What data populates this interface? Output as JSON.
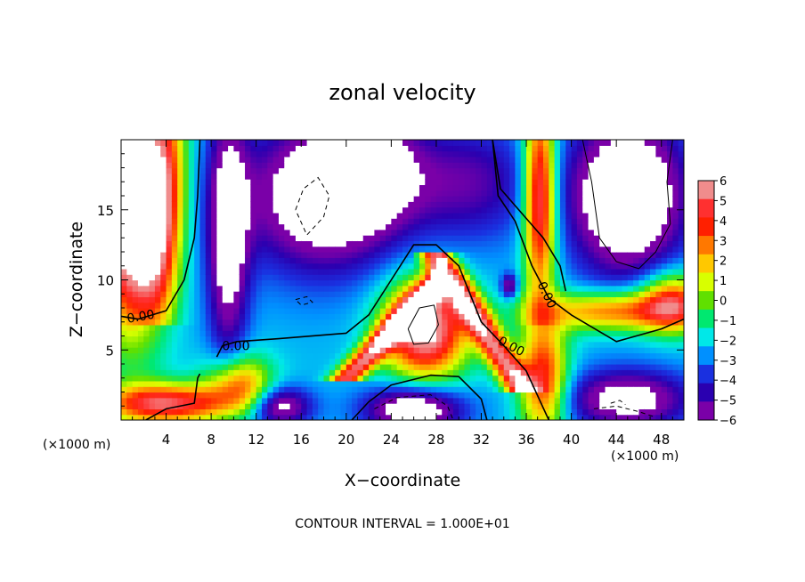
{
  "chart_data": {
    "type": "heatmap",
    "title": "zonal velocity",
    "xlabel": "X−coordinate",
    "ylabel": "Z−coordinate",
    "x_unit_left": "(×1000 m)",
    "x_unit_right": "(×1000 m)",
    "footer": "CONTOUR INTERVAL = 1.000E+01",
    "xlim": [
      0,
      50
    ],
    "ylim": [
      0,
      20
    ],
    "x_ticks": [
      4,
      8,
      12,
      16,
      20,
      24,
      28,
      32,
      36,
      40,
      44,
      48
    ],
    "x_tick_labels": [
      "4",
      "8",
      "12",
      "16",
      "20",
      "24",
      "28",
      "32",
      "36",
      "40",
      "44",
      "48"
    ],
    "y_ticks": [
      5,
      10,
      15
    ],
    "y_tick_labels": [
      "5",
      "10",
      "15"
    ],
    "colorbar": {
      "min": -6,
      "max": 6,
      "tick_values": [
        6,
        5,
        4,
        3,
        2,
        1,
        0,
        -1,
        -2,
        -3,
        -4,
        -5,
        -6
      ],
      "tick_labels": [
        "6",
        "5",
        "4",
        "3",
        "2",
        "1",
        "0",
        "−1",
        "−2",
        "−3",
        "−4",
        "−5",
        "−6"
      ],
      "colors": [
        "#f08c8c",
        "#ff3030",
        "#ff2000",
        "#ff7800",
        "#ffc800",
        "#d8ff00",
        "#60e000",
        "#00e870",
        "#00e8e8",
        "#0090ff",
        "#1a30e0",
        "#2a00b0",
        "#7a00a8"
      ]
    },
    "contour_labels": [
      {
        "text": "0.00",
        "x": 1.8,
        "y": 7.1
      },
      {
        "text": "0.00",
        "x": 10.2,
        "y": 5.0
      },
      {
        "text": "0.00",
        "x": 34.5,
        "y": 5.0
      },
      {
        "text": "0.00",
        "x": 37.5,
        "y": 8.8
      }
    ],
    "features": [
      {
        "name": "left-red-column",
        "value": 5,
        "x": [
          1,
          6
        ],
        "y": [
          8,
          20
        ]
      },
      {
        "name": "central-red-arch",
        "value": 5,
        "x": [
          22,
          33
        ],
        "y": [
          3,
          12
        ]
      },
      {
        "name": "arch-core-white",
        "value": 7,
        "x": [
          24,
          30
        ],
        "y": [
          4,
          9
        ]
      },
      {
        "name": "right-red-column",
        "value": 5,
        "x": [
          36,
          39
        ],
        "y": [
          0,
          20
        ]
      },
      {
        "name": "blue-column",
        "value": -5,
        "x": [
          8,
          11
        ],
        "y": [
          8,
          20
        ]
      },
      {
        "name": "upper-center-blue",
        "value": -5,
        "x": [
          24,
          34
        ],
        "y": [
          10,
          20
        ]
      }
    ]
  }
}
